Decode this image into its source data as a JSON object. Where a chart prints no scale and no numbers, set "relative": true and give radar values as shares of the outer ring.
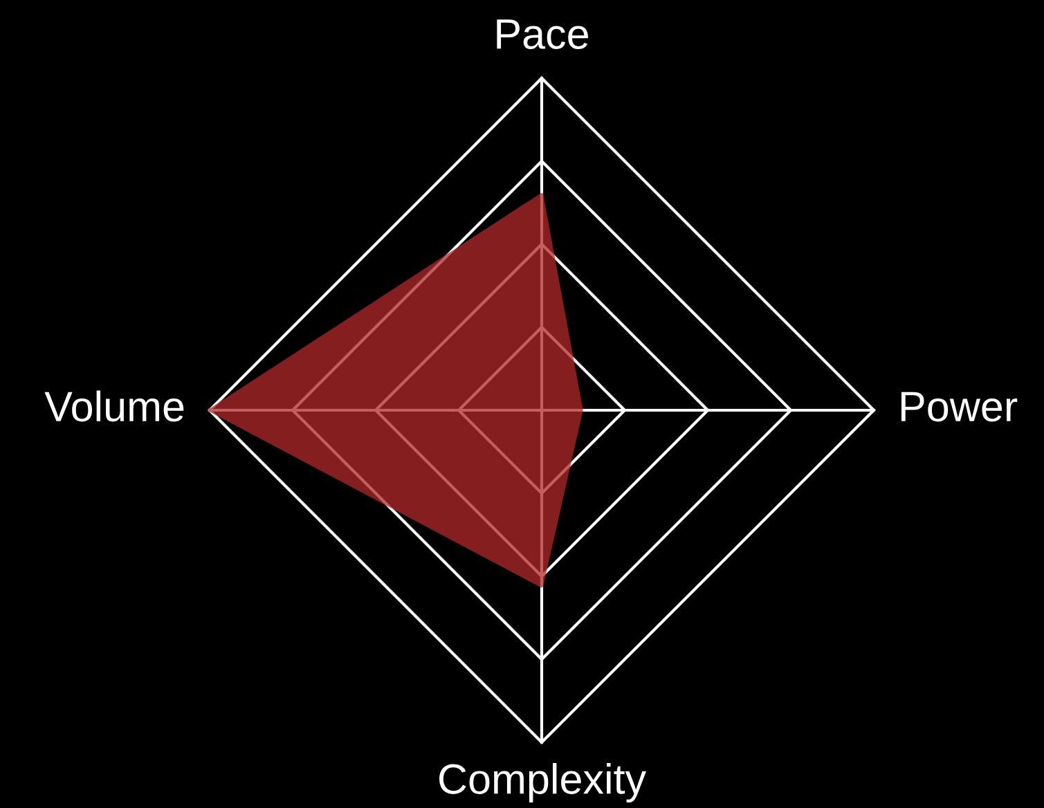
{
  "chart_data": {
    "type": "radar",
    "relative": true,
    "grid": true,
    "categories": [
      "Pace",
      "Power",
      "Complexity",
      "Volume"
    ],
    "series": [
      {
        "color": "#b22a2a",
        "values": [
          0.65,
          0.12,
          0.53,
          1.0
        ]
      }
    ]
  }
}
